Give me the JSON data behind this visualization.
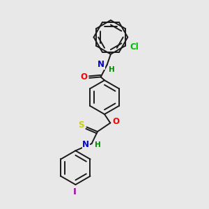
{
  "bg_color": "#e8e8e8",
  "bond_color": "#1a1a1a",
  "atom_colors": {
    "O": "#ff0000",
    "N": "#0000cc",
    "S": "#cccc00",
    "Cl": "#00bb00",
    "I": "#aa00aa",
    "H": "#008800",
    "C": "#1a1a1a"
  },
  "figsize": [
    3.0,
    3.0
  ],
  "dpi": 100
}
